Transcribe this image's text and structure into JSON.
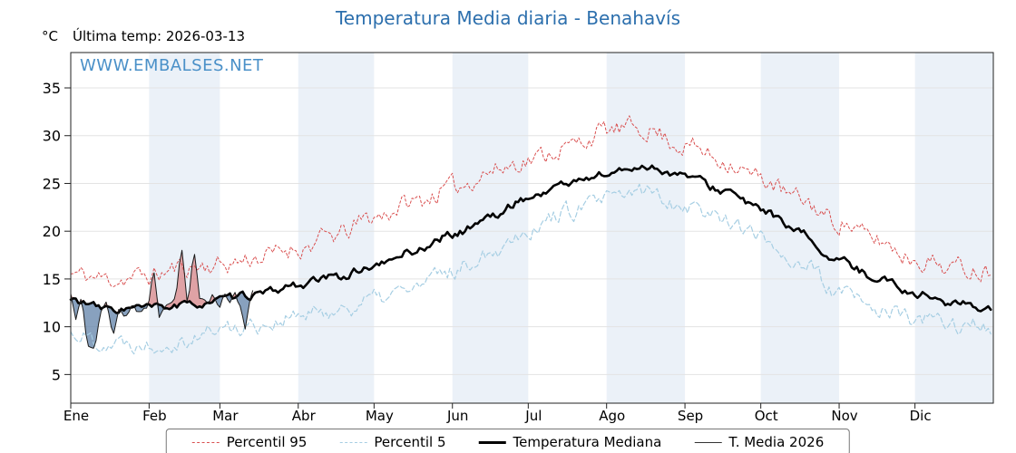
{
  "title": "Temperatura Media diaria - Benahavís",
  "title_color": "#2c6fad",
  "y_unit_label": "°C",
  "last_temp_label": "Última temp: 2026-03-13",
  "watermark": "WWW.EMBALSES.NET",
  "watermark_color": "#4a90c8",
  "legend": {
    "items": [
      {
        "label": "Percentil 95",
        "color": "#d94f4f",
        "style": "dashed",
        "thickness": 1
      },
      {
        "label": "Percentil 5",
        "color": "#a6cee3",
        "style": "dashed",
        "thickness": 1
      },
      {
        "label": "Temperatura Mediana",
        "color": "#000000",
        "style": "solid",
        "thickness": 3
      },
      {
        "label": "T. Media 2026",
        "color": "#333333",
        "style": "solid",
        "thickness": 1
      }
    ]
  },
  "chart_data": {
    "type": "line",
    "x_months": [
      "Ene",
      "Feb",
      "Mar",
      "Abr",
      "May",
      "Jun",
      "Jul",
      "Ago",
      "Sep",
      "Oct",
      "Nov",
      "Dic"
    ],
    "month_start_days": [
      0,
      31,
      59,
      90,
      120,
      151,
      181,
      212,
      243,
      273,
      304,
      334
    ],
    "days_in_year": 365,
    "yticks": [
      5,
      10,
      15,
      20,
      25,
      30,
      35
    ],
    "ylim": [
      2.0,
      38.7
    ],
    "grid": "horizontal-light",
    "legend_position": "bottom",
    "band_fill": "#ebf1f8",
    "shaded_month_indices": [
      1,
      3,
      5,
      7,
      9,
      11
    ],
    "fill_above_color": "rgba(214,96,96,0.55)",
    "fill_below_color": "rgba(96,130,168,0.75)",
    "series": [
      {
        "name": "Percentil 95",
        "color": "#d94f4f",
        "dash": "2.5 2.5",
        "width": 1,
        "noise": 0.9,
        "seed": 11,
        "anchor_days": [
          0,
          15,
          31,
          46,
          59,
          75,
          90,
          105,
          120,
          135,
          151,
          166,
          181,
          196,
          212,
          227,
          243,
          258,
          273,
          288,
          304,
          319,
          334,
          350,
          364
        ],
        "values": [
          15.5,
          15.0,
          15.3,
          16.3,
          16.5,
          17.3,
          18.3,
          19.5,
          21.5,
          23.0,
          24.5,
          26.3,
          27.5,
          28.8,
          30.5,
          30.8,
          29.0,
          27.5,
          25.5,
          23.3,
          21.0,
          19.0,
          17.2,
          16.2,
          16.0
        ]
      },
      {
        "name": "Percentil 5",
        "color": "#a6cee3",
        "dash": "5 3",
        "width": 1.2,
        "noise": 0.8,
        "seed": 22,
        "anchor_days": [
          0,
          15,
          31,
          46,
          59,
          75,
          90,
          105,
          120,
          135,
          151,
          166,
          181,
          196,
          212,
          227,
          243,
          258,
          273,
          288,
          304,
          319,
          334,
          350,
          364
        ],
        "values": [
          9.3,
          8.4,
          8.3,
          8.8,
          9.8,
          10.3,
          11.0,
          11.8,
          12.8,
          14.0,
          15.8,
          18.0,
          20.3,
          22.0,
          23.2,
          24.2,
          22.8,
          21.5,
          19.3,
          16.8,
          13.5,
          11.8,
          10.8,
          10.2,
          10.0
        ]
      },
      {
        "name": "Temperatura Mediana",
        "color": "#000000",
        "dash": "",
        "width": 2.6,
        "noise": 0.35,
        "seed": 33,
        "anchor_days": [
          0,
          15,
          31,
          46,
          59,
          75,
          90,
          105,
          120,
          135,
          151,
          166,
          181,
          196,
          212,
          227,
          243,
          258,
          273,
          288,
          304,
          319,
          334,
          350,
          364
        ],
        "values": [
          12.8,
          11.8,
          12.0,
          12.2,
          12.8,
          13.4,
          14.4,
          15.2,
          16.3,
          17.9,
          19.6,
          21.5,
          23.5,
          25.0,
          26.0,
          26.8,
          25.8,
          24.3,
          22.3,
          19.8,
          16.8,
          15.2,
          13.5,
          12.4,
          12.0
        ]
      },
      {
        "name": "T. Media 2026",
        "color": "#1a1a1a",
        "dash": "",
        "width": 1,
        "noise": 0.25,
        "seed": 44,
        "anchor_days": [
          0,
          2,
          4,
          7,
          9,
          12,
          14,
          17,
          19,
          22,
          24,
          27,
          30,
          33,
          35,
          38,
          41,
          44,
          46,
          49,
          51,
          54,
          56,
          59,
          61,
          63,
          65,
          67,
          69,
          71,
          72
        ],
        "values": [
          13.3,
          11.0,
          12.8,
          8.0,
          7.6,
          11.5,
          12.3,
          9.3,
          11.8,
          11.0,
          12.3,
          11.3,
          12.0,
          15.8,
          11.3,
          12.3,
          13.0,
          17.8,
          12.5,
          17.5,
          13.0,
          12.5,
          13.3,
          12.3,
          13.5,
          12.8,
          13.3,
          12.0,
          9.8,
          12.8,
          13.5
        ]
      }
    ]
  }
}
